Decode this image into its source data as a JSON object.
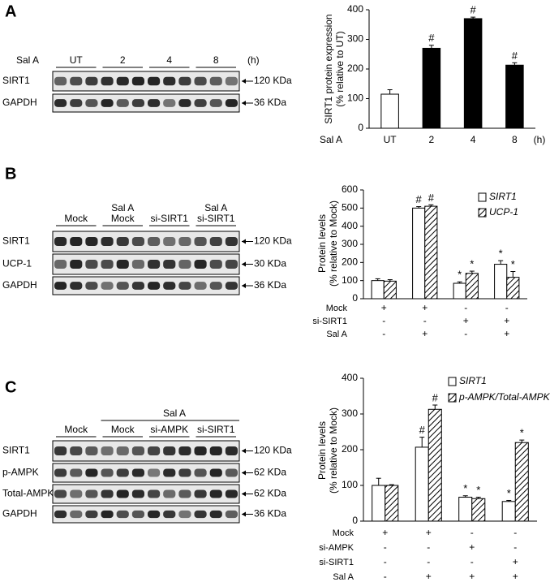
{
  "panel_labels": [
    "A",
    "B",
    "C"
  ],
  "blots": [
    {
      "left_label": "Sal A",
      "groups": [
        [
          "UT"
        ],
        [
          "2"
        ],
        [
          "4"
        ],
        [
          "8"
        ]
      ],
      "unit": "(h)",
      "rows": [
        {
          "name": "SIRT1",
          "size": "120 KDa"
        },
        {
          "name": "GAPDH",
          "size": "36 KDa"
        }
      ]
    },
    {
      "groups": [
        [
          "Mock"
        ],
        [
          "Sal A",
          "Mock"
        ],
        [
          "si-SIRT1"
        ],
        [
          "Sal A",
          "si-SIRT1"
        ]
      ],
      "rows": [
        {
          "name": "SIRT1",
          "size": "120 KDa"
        },
        {
          "name": "UCP-1",
          "size": "30 KDa"
        },
        {
          "name": "GAPDH",
          "size": "36 KDa"
        }
      ]
    },
    {
      "span_label": "Sal A",
      "groups": [
        [
          "Mock"
        ],
        [
          "Mock"
        ],
        [
          "si-AMPK"
        ],
        [
          "si-SIRT1"
        ]
      ],
      "rows": [
        {
          "name": "SIRT1",
          "size": "120 KDa"
        },
        {
          "name": "p-AMPK",
          "size": "62 KDa"
        },
        {
          "name": "Total-AMPK",
          "size": "62 KDa"
        },
        {
          "name": "GAPDH",
          "size": "36 KDa"
        }
      ]
    }
  ],
  "chart_data": [
    {
      "type": "bar",
      "ylabel": [
        "SIRT1 protein expression",
        "(% relative to UT)"
      ],
      "xlabel": "Sal A",
      "xunit": "(h)",
      "categories": [
        "UT",
        "2",
        "4",
        "8"
      ],
      "ylim": [
        0,
        400
      ],
      "yticks": [
        0,
        100,
        200,
        300,
        400
      ],
      "series": [
        {
          "values": [
            115,
            270,
            370,
            213
          ],
          "errors": [
            15,
            10,
            5,
            8
          ],
          "colors": [
            "#ffffff",
            "#000000",
            "#000000",
            "#000000"
          ],
          "annotations": [
            null,
            "#",
            "#",
            "#"
          ]
        }
      ]
    },
    {
      "type": "bar",
      "ylabel": [
        "Protein levels",
        "(% relative to Mock)"
      ],
      "ylim": [
        0,
        600
      ],
      "yticks": [
        0,
        100,
        200,
        300,
        400,
        500,
        600
      ],
      "series": [
        {
          "name": "SIRT1",
          "color": "#ffffff",
          "hatch": false,
          "values": [
            100,
            500,
            85,
            190
          ],
          "errors": [
            10,
            8,
            8,
            20
          ],
          "annotations": [
            null,
            "#",
            "*",
            "*"
          ]
        },
        {
          "name": "UCP-1",
          "color": "#ffffff",
          "hatch": true,
          "values": [
            97,
            510,
            140,
            118
          ],
          "errors": [
            8,
            8,
            12,
            32
          ],
          "annotations": [
            null,
            "#",
            "*",
            "*"
          ]
        }
      ],
      "conditions": [
        {
          "name": "Mock",
          "signs": [
            "+",
            "+",
            "-",
            "-"
          ]
        },
        {
          "name": "si-SIRT1",
          "signs": [
            "-",
            "-",
            "+",
            "+"
          ]
        },
        {
          "name": "Sal A",
          "signs": [
            "-",
            "+",
            "-",
            "+"
          ]
        }
      ]
    },
    {
      "type": "bar",
      "ylabel": [
        "Protein levels",
        "(% relative to Mock)"
      ],
      "ylim": [
        0,
        400
      ],
      "yticks": [
        0,
        100,
        200,
        300,
        400
      ],
      "series": [
        {
          "name": "SIRT1",
          "color": "#ffffff",
          "hatch": false,
          "values": [
            100,
            207,
            67,
            55
          ],
          "errors": [
            20,
            28,
            4,
            3
          ],
          "annotations": [
            null,
            "#",
            "*",
            "*"
          ]
        },
        {
          "name": "p-AMPK/Total-AMPK",
          "color": "#ffffff",
          "hatch": true,
          "values": [
            100,
            313,
            63,
            220
          ],
          "errors": [
            2,
            12,
            4,
            7
          ],
          "annotations": [
            null,
            "#",
            "*",
            "*"
          ]
        }
      ],
      "conditions": [
        {
          "name": "Mock",
          "signs": [
            "+",
            "+",
            "-",
            "-"
          ]
        },
        {
          "name": "si-AMPK",
          "signs": [
            "-",
            "-",
            "+",
            "-"
          ]
        },
        {
          "name": "si-SIRT1",
          "signs": [
            "-",
            "-",
            "-",
            "+"
          ]
        },
        {
          "name": "Sal A",
          "signs": [
            "-",
            "+",
            "+",
            "+"
          ]
        }
      ]
    }
  ]
}
